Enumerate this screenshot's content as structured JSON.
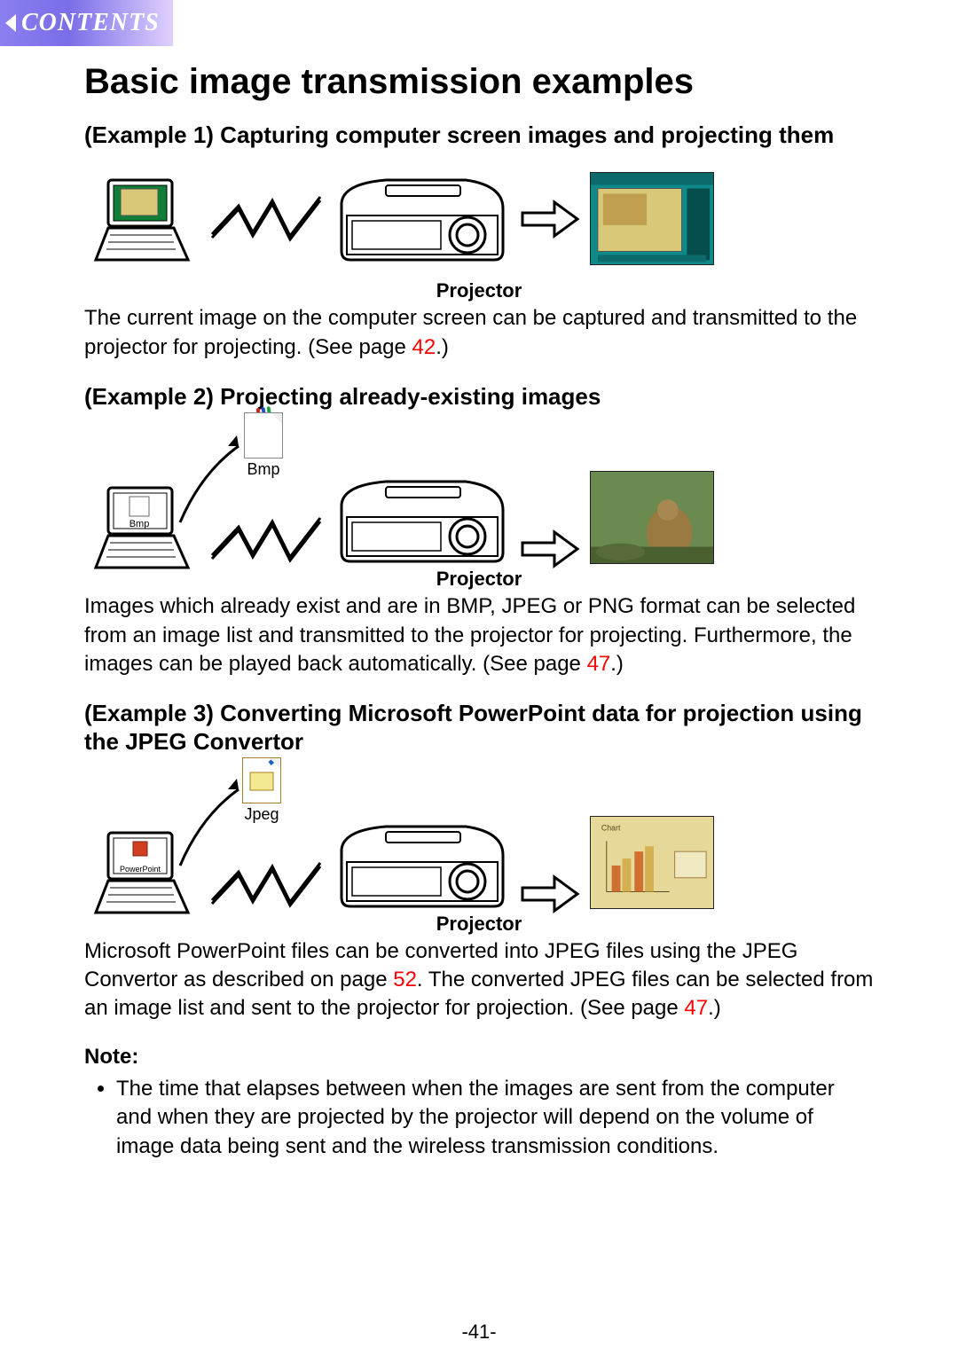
{
  "contents_banner": "CONTENTS",
  "page_title": "Basic image transmission examples",
  "page_number": "-41-",
  "colors": {
    "link": "#ff0000",
    "banner_grad_start": "#8a7ef0",
    "banner_grad_end": "#e0d0ff",
    "text": "#000000",
    "bg": "#ffffff"
  },
  "examples": [
    {
      "heading": "(Example 1) Capturing computer screen images and projecting them",
      "projector_label": "Projector",
      "body_before_link": "The current image on the computer screen can be captured and transmitted to the projector for projecting. (See page ",
      "link_text": "42",
      "body_after_link": ".)",
      "icon_label": "",
      "output_type": "screenshot"
    },
    {
      "heading": "(Example 2) Projecting already-existing images",
      "projector_label": "Projector",
      "icon_label": "Bmp",
      "laptop_label": "Bmp",
      "body_before_link": "Images which already exist and are in BMP, JPEG or PNG format can be selected from an image list and transmitted to the projector for projecting. Furthermore, the images can be played back automatically. (See page ",
      "link_text": "47",
      "body_after_link": ".)",
      "output_type": "photo"
    },
    {
      "heading": "(Example 3) Converting Microsoft PowerPoint data for projection using the JPEG Convertor",
      "projector_label": "Projector",
      "icon_label": "Jpeg",
      "laptop_label": "PowerPoint",
      "body_parts": [
        {
          "t": "text",
          "v": "Microsoft PowerPoint files can be converted into JPEG files using the JPEG Convertor as described on page "
        },
        {
          "t": "link",
          "v": "52"
        },
        {
          "t": "text",
          "v": ". The converted JPEG files can be selected from an image list and sent to the projector for projection. (See page "
        },
        {
          "t": "link",
          "v": "47"
        },
        {
          "t": "text",
          "v": ".)"
        }
      ],
      "output_type": "chart"
    }
  ],
  "note": {
    "heading": "Note:",
    "items": [
      "The time that elapses between when the images are sent from the computer and when they are projected by the projector will depend on the volume of image data being sent and the wireless transmission conditions."
    ]
  }
}
